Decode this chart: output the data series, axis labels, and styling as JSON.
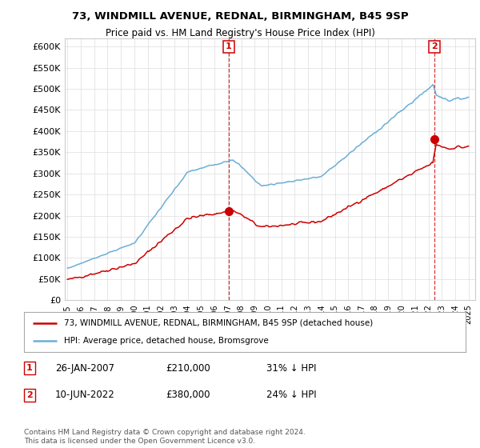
{
  "title1": "73, WINDMILL AVENUE, REDNAL, BIRMINGHAM, B45 9SP",
  "title2": "Price paid vs. HM Land Registry's House Price Index (HPI)",
  "legend_line1": "73, WINDMILL AVENUE, REDNAL, BIRMINGHAM, B45 9SP (detached house)",
  "legend_line2": "HPI: Average price, detached house, Bromsgrove",
  "annotation1_label": "1",
  "annotation1_date": "26-JAN-2007",
  "annotation1_price": "£210,000",
  "annotation1_hpi": "31% ↓ HPI",
  "annotation2_label": "2",
  "annotation2_date": "10-JUN-2022",
  "annotation2_price": "£380,000",
  "annotation2_hpi": "24% ↓ HPI",
  "footer": "Contains HM Land Registry data © Crown copyright and database right 2024.\nThis data is licensed under the Open Government Licence v3.0.",
  "hpi_color": "#6baed6",
  "price_color": "#cc0000",
  "dashed_color": "#cc0000",
  "background_color": "#ffffff",
  "grid_color": "#dddddd",
  "ylim": [
    0,
    620000
  ],
  "yticks": [
    0,
    50000,
    100000,
    150000,
    200000,
    250000,
    300000,
    350000,
    400000,
    450000,
    500000,
    550000,
    600000
  ],
  "sale1_year": 2007.07,
  "sale1_price": 210000,
  "sale2_year": 2022.44,
  "sale2_price": 380000,
  "xlim_min": 1994.8,
  "xlim_max": 2025.5
}
